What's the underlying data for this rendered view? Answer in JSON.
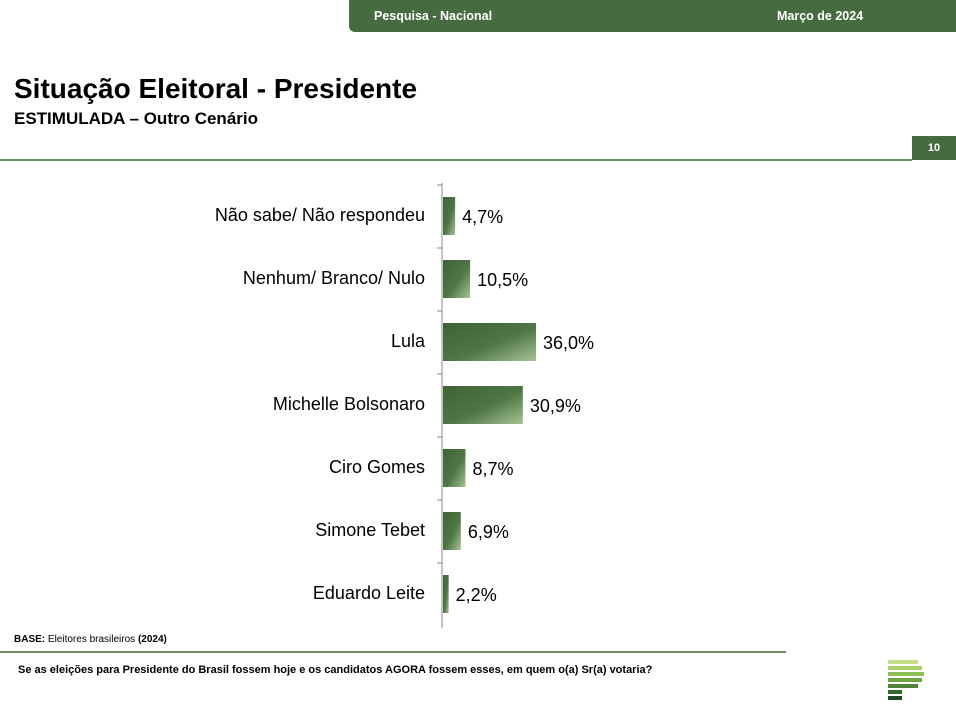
{
  "header": {
    "survey_label": "Pesquisa - Nacional",
    "date_label": "Março de 2024",
    "page_number": "10"
  },
  "title": "Situação Eleitoral - Presidente",
  "subtitle": "ESTIMULADA – Outro Cenário",
  "base": {
    "label": "BASE:",
    "text": "Eleitores brasileiros",
    "year": "(2024)"
  },
  "question": "Se as eleições para Presidente do Brasil fossem hoje e os candidatos AGORA fossem esses, em quem o(a) Sr(a) votaria?",
  "colors": {
    "brand_green": "#476b40",
    "bar_dark": "#3e6236",
    "bar_light": "#a7c497",
    "rule": "#6e8e64"
  },
  "chart_data": {
    "type": "bar",
    "orientation": "horizontal",
    "categories": [
      "Não sabe/ Não respondeu",
      "Nenhum/ Branco/ Nulo",
      "Lula",
      "Michelle Bolsonaro",
      "Ciro Gomes",
      "Simone Tebet",
      "Eduardo Leite"
    ],
    "values": [
      4.7,
      10.5,
      36.0,
      30.9,
      8.7,
      6.9,
      2.2
    ],
    "value_labels": [
      "4,7%",
      "10,5%",
      "36,0%",
      "30,9%",
      "8,7%",
      "6,9%",
      "2,2%"
    ],
    "xlim": [
      0,
      100
    ],
    "grid": false,
    "legend": "none"
  }
}
